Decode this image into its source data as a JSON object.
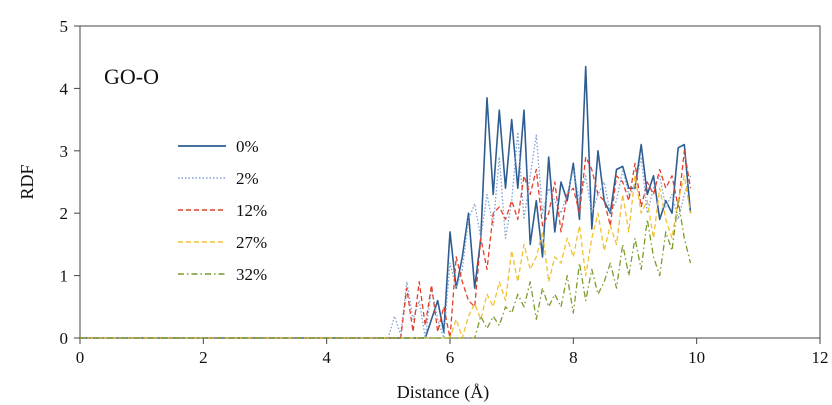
{
  "chart_data": {
    "type": "line",
    "xlabel": "Distance (Å)",
    "ylabel": "RDF",
    "xlim": [
      0,
      12
    ],
    "ylim": [
      0,
      5
    ],
    "xticks": [
      "0",
      "2",
      "4",
      "6",
      "8",
      "10",
      "12"
    ],
    "yticks": [
      "0",
      "1",
      "2",
      "3",
      "4",
      "5"
    ],
    "annotation": "GO-O",
    "grid": false,
    "legend_position": "middle-left",
    "series": [
      {
        "name": "0%",
        "color": "#2e5e91",
        "dash": "solid",
        "x": [
          0,
          5.6,
          5.8,
          5.9,
          6.0,
          6.1,
          6.2,
          6.3,
          6.4,
          6.5,
          6.6,
          6.7,
          6.8,
          6.9,
          7.0,
          7.1,
          7.2,
          7.3,
          7.4,
          7.5,
          7.6,
          7.7,
          7.8,
          7.9,
          8.0,
          8.1,
          8.2,
          8.3,
          8.4,
          8.5,
          8.6,
          8.7,
          8.8,
          8.9,
          9.0,
          9.1,
          9.2,
          9.3,
          9.4,
          9.5,
          9.6,
          9.7,
          9.8,
          9.9
        ],
        "y": [
          0,
          0,
          0.6,
          0.1,
          1.7,
          0.8,
          1.3,
          2.0,
          0.8,
          1.6,
          3.85,
          2.3,
          3.65,
          2.4,
          3.5,
          2.4,
          3.65,
          1.5,
          2.2,
          1.3,
          2.9,
          1.7,
          2.5,
          2.2,
          2.8,
          1.9,
          4.35,
          1.75,
          3.0,
          2.2,
          2.0,
          2.7,
          2.75,
          2.4,
          2.4,
          3.1,
          2.3,
          2.6,
          1.9,
          2.2,
          2.0,
          3.05,
          3.1,
          2.0
        ]
      },
      {
        "name": "2%",
        "color": "#7ea1d6",
        "dash": "dotted",
        "x": [
          0,
          5.0,
          5.1,
          5.2,
          5.3,
          5.4,
          5.5,
          5.6,
          5.7,
          5.8,
          5.9,
          6.0,
          6.1,
          6.2,
          6.3,
          6.4,
          6.5,
          6.6,
          6.7,
          6.8,
          6.9,
          7.0,
          7.1,
          7.2,
          7.3,
          7.4,
          7.5,
          7.6,
          7.7,
          7.8,
          7.9,
          8.0,
          8.1,
          8.2,
          8.3,
          8.4,
          8.5,
          8.6,
          8.7,
          8.8,
          8.9,
          9.0,
          9.1,
          9.2,
          9.3,
          9.4,
          9.5,
          9.6,
          9.7,
          9.8,
          9.9
        ],
        "y": [
          0,
          0,
          0.35,
          0.05,
          0.9,
          0.3,
          0.6,
          0.0,
          0.8,
          0.3,
          0.0,
          1.2,
          0.8,
          1.1,
          1.9,
          2.15,
          1.6,
          2.3,
          1.8,
          2.9,
          1.6,
          2.2,
          3.3,
          1.9,
          2.6,
          3.25,
          2.0,
          2.4,
          2.2,
          2.0,
          2.3,
          2.7,
          2.2,
          2.6,
          2.0,
          2.3,
          2.5,
          2.0,
          2.2,
          2.7,
          2.3,
          2.4,
          2.9,
          2.0,
          2.4,
          2.6,
          2.1,
          2.3,
          1.9,
          2.3,
          2.6
        ]
      },
      {
        "name": "12%",
        "color": "#e2402a",
        "dash": "dashed",
        "x": [
          0,
          5.2,
          5.3,
          5.4,
          5.5,
          5.6,
          5.7,
          5.8,
          5.9,
          6.0,
          6.1,
          6.2,
          6.3,
          6.4,
          6.5,
          6.6,
          6.7,
          6.8,
          6.9,
          7.0,
          7.1,
          7.2,
          7.3,
          7.4,
          7.5,
          7.6,
          7.7,
          7.8,
          7.9,
          8.0,
          8.1,
          8.2,
          8.3,
          8.4,
          8.5,
          8.6,
          8.7,
          8.8,
          8.9,
          9.0,
          9.1,
          9.2,
          9.3,
          9.4,
          9.5,
          9.6,
          9.7,
          9.8,
          9.9
        ],
        "y": [
          0,
          0,
          0.8,
          0.1,
          0.9,
          0.2,
          0.85,
          0.1,
          0.5,
          0.0,
          1.3,
          0.9,
          0.6,
          0.5,
          1.6,
          1.1,
          2.0,
          2.1,
          1.9,
          2.2,
          1.9,
          2.6,
          2.3,
          2.7,
          1.8,
          2.0,
          2.5,
          1.7,
          2.3,
          2.4,
          2.0,
          2.9,
          2.7,
          2.3,
          2.2,
          1.8,
          2.6,
          2.5,
          2.2,
          2.8,
          2.1,
          2.5,
          2.3,
          2.7,
          2.4,
          2.6,
          2.1,
          3.0,
          2.4
        ]
      },
      {
        "name": "27%",
        "color": "#f2c12e",
        "dash": "dashed",
        "x": [
          0,
          6.0,
          6.1,
          6.2,
          6.3,
          6.4,
          6.5,
          6.6,
          6.7,
          6.8,
          6.9,
          7.0,
          7.1,
          7.2,
          7.3,
          7.4,
          7.5,
          7.6,
          7.7,
          7.8,
          7.9,
          8.0,
          8.1,
          8.2,
          8.3,
          8.4,
          8.5,
          8.6,
          8.7,
          8.8,
          8.9,
          9.0,
          9.1,
          9.2,
          9.3,
          9.4,
          9.5,
          9.6,
          9.7,
          9.8,
          9.9
        ],
        "y": [
          0,
          0,
          0.3,
          0.0,
          0.35,
          0.55,
          0.3,
          0.7,
          0.5,
          0.9,
          0.6,
          1.4,
          0.9,
          1.5,
          1.1,
          1.3,
          1.7,
          0.9,
          1.3,
          1.2,
          1.6,
          1.3,
          1.8,
          1.0,
          1.6,
          2.0,
          1.4,
          1.8,
          1.5,
          2.3,
          1.7,
          2.6,
          2.0,
          2.2,
          1.6,
          2.4,
          1.9,
          1.6,
          2.2,
          2.6,
          2.0
        ]
      },
      {
        "name": "32%",
        "color": "#7a9c2c",
        "dash": "dashdot",
        "x": [
          0,
          6.4,
          6.5,
          6.6,
          6.7,
          6.8,
          6.9,
          7.0,
          7.1,
          7.2,
          7.3,
          7.4,
          7.5,
          7.6,
          7.7,
          7.8,
          7.9,
          8.0,
          8.1,
          8.2,
          8.3,
          8.4,
          8.5,
          8.6,
          8.7,
          8.8,
          8.9,
          9.0,
          9.1,
          9.2,
          9.3,
          9.4,
          9.5,
          9.6,
          9.7,
          9.8,
          9.9
        ],
        "y": [
          0,
          0,
          0.35,
          0.15,
          0.35,
          0.2,
          0.5,
          0.4,
          0.7,
          0.5,
          0.9,
          0.3,
          0.8,
          0.5,
          0.7,
          0.5,
          1.0,
          0.4,
          1.2,
          0.6,
          1.1,
          0.7,
          0.9,
          1.2,
          0.8,
          1.5,
          1.0,
          1.6,
          1.1,
          1.9,
          1.3,
          1.0,
          1.7,
          1.4,
          2.2,
          1.6,
          1.2
        ]
      }
    ]
  }
}
